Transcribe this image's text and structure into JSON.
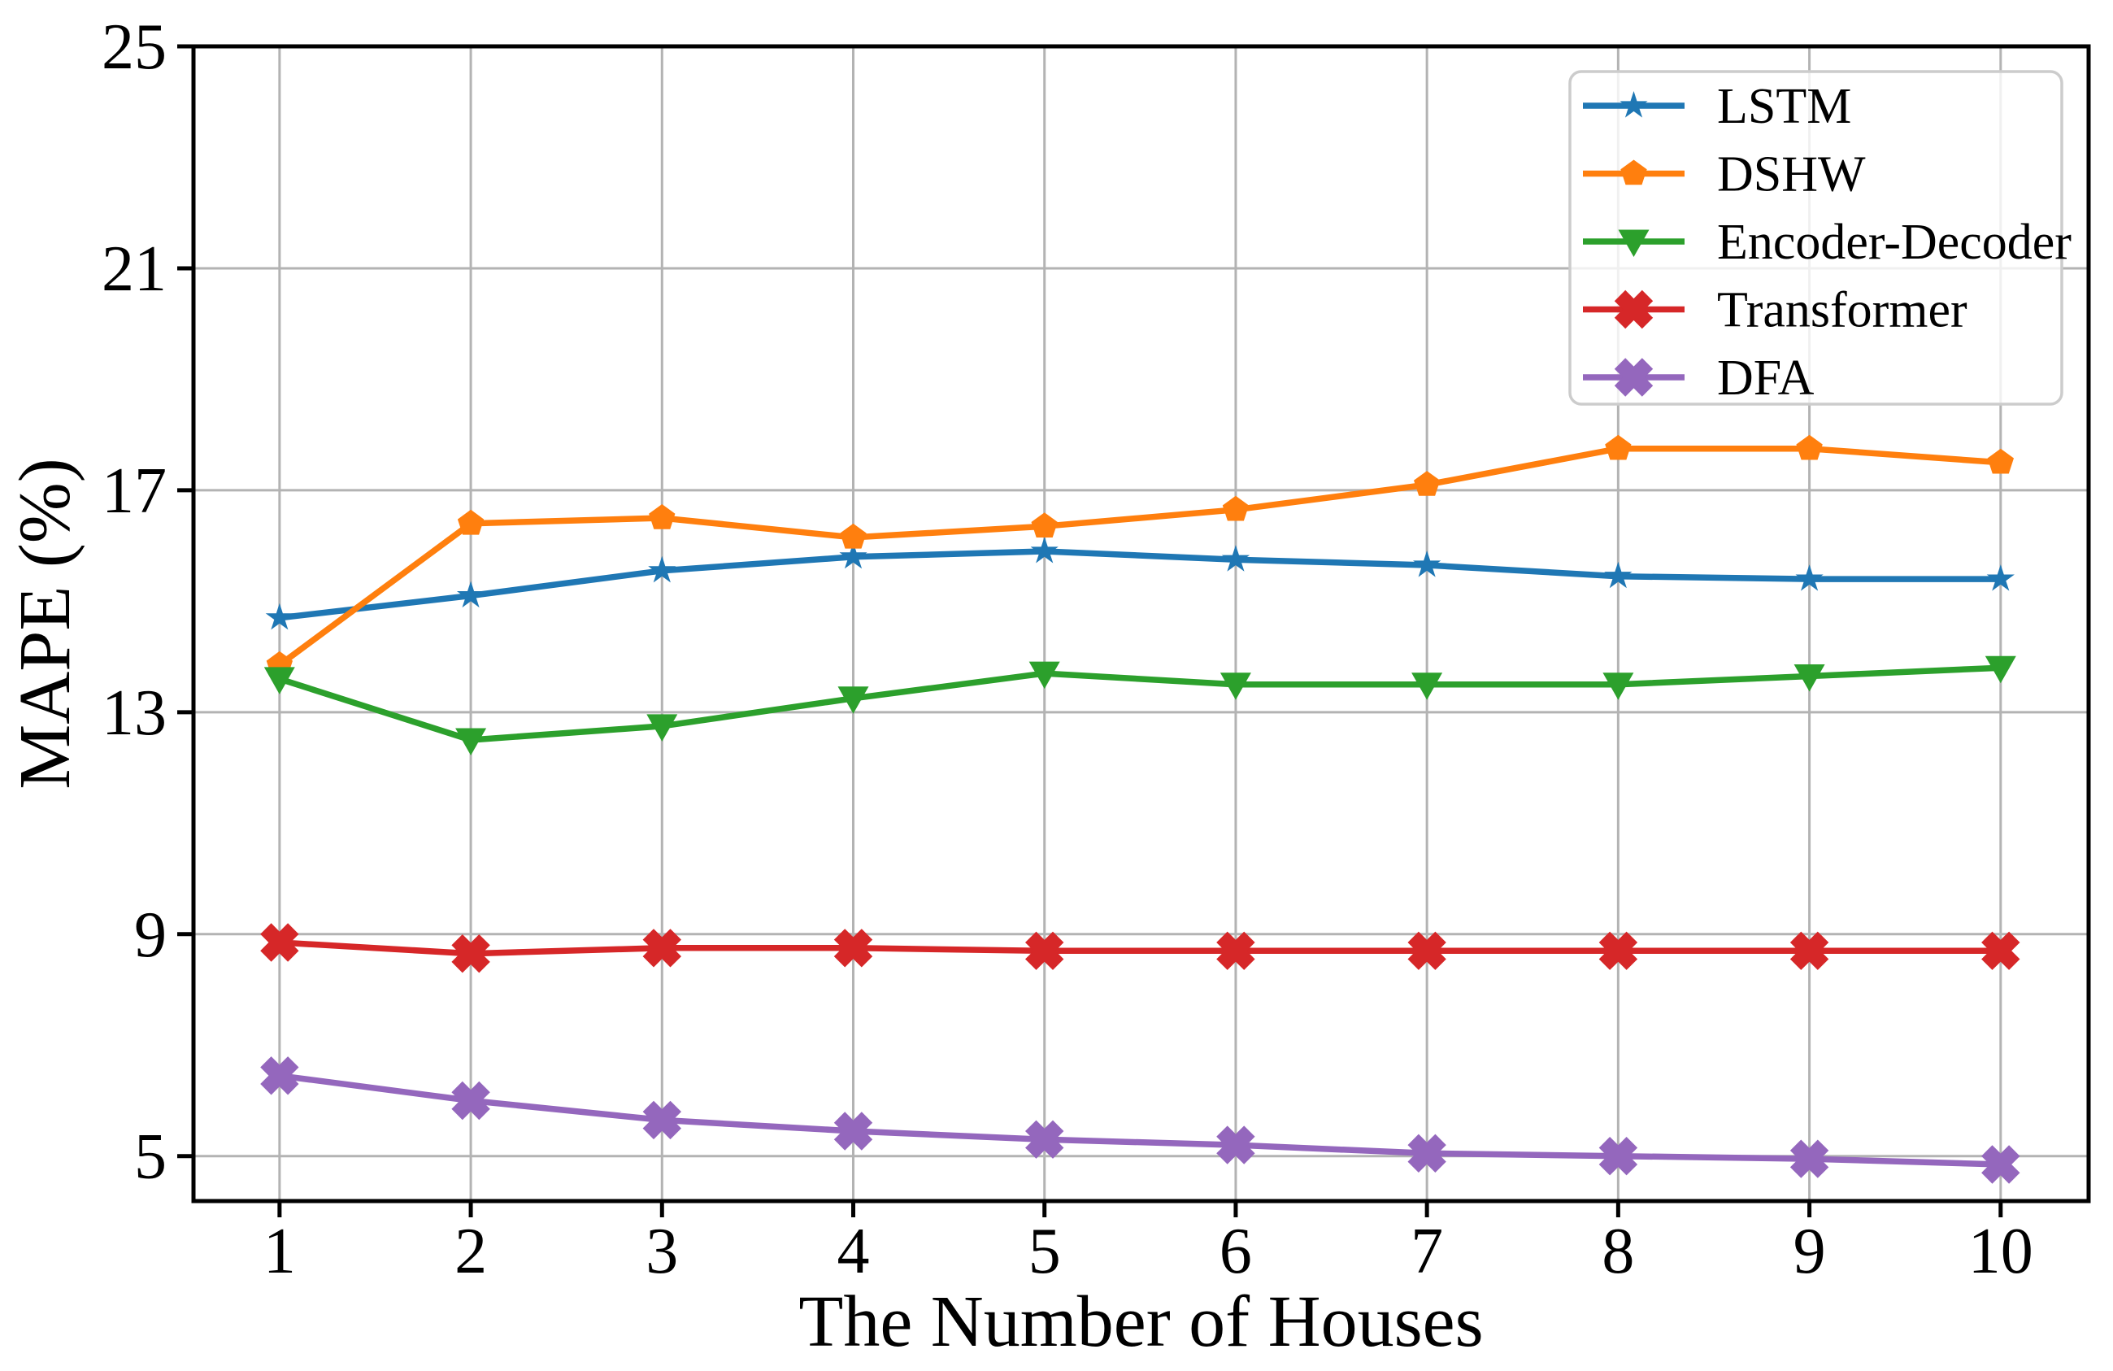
{
  "chart_data": {
    "type": "line",
    "title": "",
    "xlabel": "The Number of Houses",
    "ylabel": "MAPE (%)",
    "x": [
      1,
      2,
      3,
      4,
      5,
      6,
      7,
      8,
      9,
      10
    ],
    "xticks": [
      1,
      2,
      3,
      4,
      5,
      6,
      7,
      8,
      9,
      10
    ],
    "yticks": [
      5,
      9,
      13,
      17,
      21,
      25
    ],
    "xlim": [
      0.55,
      10.46
    ],
    "ylim": [
      4.19,
      25
    ],
    "grid": true,
    "grid_color": "#b3b3b3",
    "spine_color": "#000000",
    "legend_position": "upper right",
    "legend_border_color": "#cccccc",
    "series": [
      {
        "name": "LSTM",
        "color": "#1f77b4",
        "marker": "star",
        "values": [
          14.7,
          15.1,
          15.55,
          15.8,
          15.9,
          15.75,
          15.65,
          15.45,
          15.4,
          15.4
        ]
      },
      {
        "name": "DSHW",
        "color": "#ff7f0e",
        "marker": "pentagon",
        "values": [
          13.85,
          16.4,
          16.5,
          16.15,
          16.35,
          16.65,
          17.1,
          17.75,
          17.75,
          17.5
        ]
      },
      {
        "name": "Encoder-Decoder",
        "color": "#2ca02c",
        "marker": "triangle-down",
        "values": [
          13.6,
          12.5,
          12.75,
          13.25,
          13.7,
          13.5,
          13.5,
          13.5,
          13.65,
          13.8
        ]
      },
      {
        "name": "Transformer",
        "color": "#d62728",
        "marker": "x",
        "values": [
          8.85,
          8.65,
          8.75,
          8.75,
          8.7,
          8.7,
          8.7,
          8.7,
          8.7,
          8.7
        ]
      },
      {
        "name": "DFA",
        "color": "#9467bd",
        "marker": "x",
        "values": [
          6.45,
          6.0,
          5.65,
          5.45,
          5.3,
          5.2,
          5.05,
          5.0,
          4.95,
          4.85
        ]
      }
    ]
  }
}
